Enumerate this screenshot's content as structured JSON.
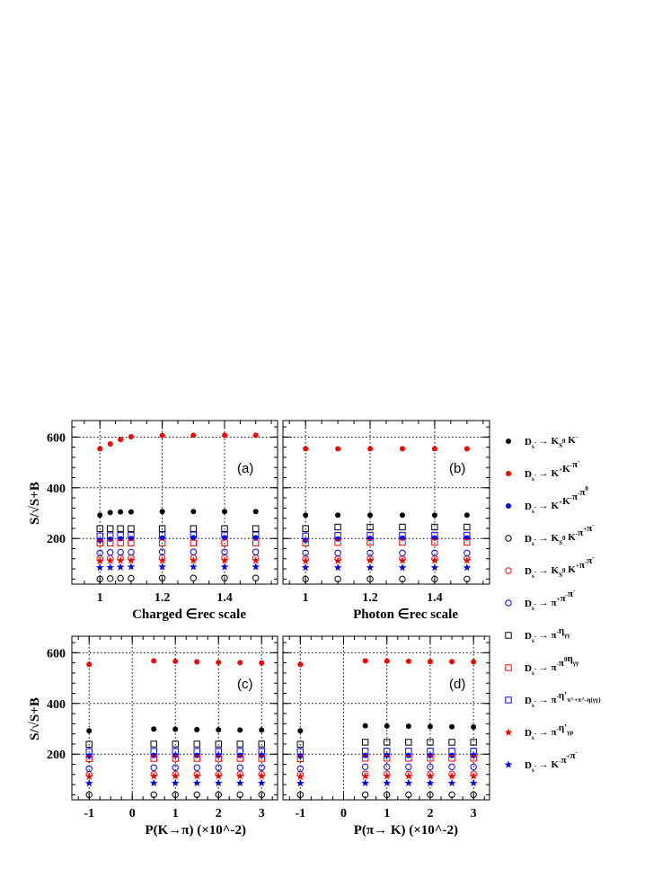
{
  "figure": {
    "ylabel": "S/√S+B",
    "legend": [
      {
        "label": "D_s^- → K_S^0 K^-",
        "marker": "dot",
        "color": "#000000"
      },
      {
        "label": "D_s^- → K^+K^-π^-",
        "marker": "dot",
        "color": "#ff0000"
      },
      {
        "label": "D_s^- → K^+K^-π^-π^0",
        "marker": "dot",
        "color": "#0000ff"
      },
      {
        "label": "D_s^- → K_S^0 K^-π^+π^-",
        "marker": "open-circle",
        "color": "#000000"
      },
      {
        "label": "D_s^- → K_S^0 K^+π^-π^-",
        "marker": "open-circle",
        "color": "#ff0000"
      },
      {
        "label": "D_s^- → π^+π^-π^-",
        "marker": "open-circle",
        "color": "#0000ff"
      },
      {
        "label": "D_s^- → π^-η_{γγ}",
        "marker": "open-square",
        "color": "#000000"
      },
      {
        "label": "D_s^- → π^-π^0η_{γγ}",
        "marker": "open-square",
        "color": "#ff0000"
      },
      {
        "label": "D_s^- → π^-η'_{π^+π^-η(γγ)}",
        "marker": "open-square",
        "color": "#0000ff"
      },
      {
        "label": "D_s^- → π^-η'_{γρ}",
        "marker": "star",
        "color": "#ff0000"
      },
      {
        "label": "D_s^- → K^-π^+π^-",
        "marker": "star",
        "color": "#0000ff"
      }
    ]
  },
  "chart_data": [
    {
      "type": "scatter",
      "panel_label": "(a)",
      "xlabel": "Charged ∈rec scale",
      "ylabel": "S/√S+B",
      "xlim": [
        0.91,
        1.57
      ],
      "ylim": [
        20,
        665
      ],
      "xticks": [
        {
          "v": 1,
          "t": "1"
        },
        {
          "v": 1.2,
          "t": "1.2"
        },
        {
          "v": 1.4,
          "t": "1.4"
        }
      ],
      "yticks": [
        {
          "v": 200,
          "t": "200"
        },
        {
          "v": 400,
          "t": "400"
        },
        {
          "v": 600,
          "t": "600"
        }
      ],
      "x": [
        1.0,
        1.033,
        1.066,
        1.1,
        1.2,
        1.3,
        1.4,
        1.5
      ],
      "series": [
        {
          "name": "D_s^- → K_S^0 K^-",
          "values": [
            292,
            302,
            305,
            305,
            306,
            306,
            306,
            306
          ]
        },
        {
          "name": "D_s^- → K^+K^-π^-",
          "values": [
            554,
            573,
            590,
            601,
            606,
            607,
            607,
            607
          ]
        },
        {
          "name": "D_s^- → K^+K^-π^-π^0",
          "values": [
            193,
            197,
            199,
            200,
            202,
            203,
            203,
            203
          ]
        },
        {
          "name": "D_s^- → K_S^0 K^-π^+π^-",
          "values": [
            40,
            42,
            43,
            43,
            44,
            44,
            44,
            44
          ]
        },
        {
          "name": "D_s^- → K_S^0 K^+π^-π^-",
          "values": [
            120,
            122,
            123,
            124,
            124,
            124,
            124,
            124
          ]
        },
        {
          "name": "D_s^- → π^+π^-π^-",
          "values": [
            143,
            145,
            146,
            146,
            147,
            147,
            147,
            147
          ]
        },
        {
          "name": "D_s^- → π^-η_{γγ}",
          "values": [
            239,
            239,
            239,
            239,
            239,
            239,
            239,
            239
          ]
        },
        {
          "name": "D_s^- → π^-π^0η_{γγ}",
          "values": [
            182,
            182,
            182,
            182,
            182,
            182,
            182,
            182
          ]
        },
        {
          "name": "D_s^- → π^-η'_{π^+π^-η(γγ)}",
          "values": [
            210,
            211,
            212,
            213,
            214,
            214,
            214,
            214
          ]
        },
        {
          "name": "D_s^- → π^-η'_{γρ}",
          "values": [
            111,
            112,
            113,
            113,
            113,
            113,
            113,
            113
          ]
        },
        {
          "name": "D_s^- → K^-π^+π^-",
          "values": [
            85,
            86,
            87,
            88,
            88,
            88,
            88,
            88
          ]
        }
      ]
    },
    {
      "type": "scatter",
      "panel_label": "(b)",
      "xlabel": "Photon ∈rec scale",
      "ylabel": "",
      "xlim": [
        0.93,
        1.57
      ],
      "ylim": [
        20,
        665
      ],
      "xticks": [
        {
          "v": 1,
          "t": "1"
        },
        {
          "v": 1.2,
          "t": "1.2"
        },
        {
          "v": 1.4,
          "t": "1.4"
        }
      ],
      "yticks": [
        {
          "v": 200,
          "t": ""
        },
        {
          "v": 400,
          "t": ""
        },
        {
          "v": 600,
          "t": ""
        }
      ],
      "x": [
        1.0,
        1.1,
        1.2,
        1.3,
        1.4,
        1.5
      ],
      "series": [
        {
          "name": "D_s^- → K_S^0 K^-",
          "values": [
            292,
            292,
            292,
            292,
            292,
            292
          ]
        },
        {
          "name": "D_s^- → K^+K^-π^-",
          "values": [
            554,
            554,
            554,
            554,
            554,
            554
          ]
        },
        {
          "name": "D_s^- → K^+K^-π^-π^0",
          "values": [
            193,
            198,
            200,
            201,
            202,
            202
          ]
        },
        {
          "name": "D_s^- → K_S^0 K^-π^+π^-",
          "values": [
            40,
            40,
            40,
            40,
            40,
            40
          ]
        },
        {
          "name": "D_s^- → K_S^0 K^+π^-π^-",
          "values": [
            120,
            120,
            120,
            120,
            120,
            120
          ]
        },
        {
          "name": "D_s^- → π^+π^-π^-",
          "values": [
            143,
            143,
            143,
            143,
            143,
            143
          ]
        },
        {
          "name": "D_s^- → π^-η_{γγ}",
          "values": [
            239,
            245,
            245,
            245,
            245,
            245
          ]
        },
        {
          "name": "D_s^- → π^-π^0η_{γγ}",
          "values": [
            182,
            184,
            185,
            185,
            185,
            185
          ]
        },
        {
          "name": "D_s^- → π^-η'_{π^+π^-η(γγ)}",
          "values": [
            210,
            212,
            213,
            213,
            213,
            213
          ]
        },
        {
          "name": "D_s^- → π^-η'_{γρ}",
          "values": [
            111,
            112,
            113,
            113,
            113,
            113
          ]
        },
        {
          "name": "D_s^- → K^-π^+π^-",
          "values": [
            85,
            85,
            85,
            85,
            85,
            85
          ]
        }
      ]
    },
    {
      "type": "scatter",
      "panel_label": "(c)",
      "xlabel": "P(K→π) (×10^-2)",
      "ylabel": "S/√S+B",
      "xlim": [
        -1.4,
        3.37
      ],
      "ylim": [
        20,
        665
      ],
      "xticks": [
        {
          "v": -1,
          "t": "-1"
        },
        {
          "v": 0,
          "t": "0"
        },
        {
          "v": 1,
          "t": "1"
        },
        {
          "v": 2,
          "t": "2"
        },
        {
          "v": 3,
          "t": "3"
        }
      ],
      "yticks": [
        {
          "v": 200,
          "t": "200"
        },
        {
          "v": 400,
          "t": "400"
        },
        {
          "v": 600,
          "t": "600"
        }
      ],
      "x": [
        -1.0,
        0.5,
        1.0,
        1.5,
        2.0,
        2.5,
        3.0
      ],
      "series": [
        {
          "name": "D_s^- → K_S^0 K^-",
          "values": [
            292,
            299,
            298,
            297,
            296,
            295,
            295
          ]
        },
        {
          "name": "D_s^- → K^+K^-π^-",
          "values": [
            554,
            568,
            566,
            564,
            562,
            561,
            560
          ]
        },
        {
          "name": "D_s^- → K^+K^-π^-π^0",
          "values": [
            193,
            195,
            195,
            195,
            195,
            195,
            195
          ]
        },
        {
          "name": "D_s^- → K_S^0 K^-π^+π^-",
          "values": [
            40,
            40,
            40,
            40,
            40,
            40,
            40
          ]
        },
        {
          "name": "D_s^- → K_S^0 K^+π^-π^-",
          "values": [
            120,
            121,
            121,
            121,
            121,
            121,
            121
          ]
        },
        {
          "name": "D_s^- → π^+π^-π^-",
          "values": [
            143,
            147,
            147,
            147,
            147,
            147,
            147
          ]
        },
        {
          "name": "D_s^- → π^-η_{γγ}",
          "values": [
            239,
            240,
            240,
            240,
            240,
            240,
            240
          ]
        },
        {
          "name": "D_s^- → π^-π^0η_{γγ}",
          "values": [
            182,
            183,
            183,
            183,
            183,
            183,
            183
          ]
        },
        {
          "name": "D_s^- → π^-η'_{π^+π^-η(γγ)}",
          "values": [
            210,
            211,
            211,
            211,
            211,
            211,
            211
          ]
        },
        {
          "name": "D_s^- → π^-η'_{γρ}",
          "values": [
            111,
            113,
            113,
            113,
            113,
            113,
            113
          ]
        },
        {
          "name": "D_s^- → K^-π^+π^-",
          "values": [
            85,
            86,
            86,
            86,
            86,
            86,
            86
          ]
        }
      ]
    },
    {
      "type": "scatter",
      "panel_label": "(d)",
      "xlabel": "P(π→ K) (×10^-2)",
      "ylabel": "",
      "xlim": [
        -1.4,
        3.37
      ],
      "ylim": [
        20,
        665
      ],
      "xticks": [
        {
          "v": -1,
          "t": "-1"
        },
        {
          "v": 0,
          "t": "0"
        },
        {
          "v": 1,
          "t": "1"
        },
        {
          "v": 2,
          "t": "2"
        },
        {
          "v": 3,
          "t": "3"
        }
      ],
      "yticks": [
        {
          "v": 200,
          "t": ""
        },
        {
          "v": 400,
          "t": ""
        },
        {
          "v": 600,
          "t": ""
        }
      ],
      "x": [
        -1.0,
        0.5,
        1.0,
        1.5,
        2.0,
        2.5,
        3.0
      ],
      "series": [
        {
          "name": "D_s^- → K_S^0 K^-",
          "values": [
            292,
            312,
            311,
            310,
            309,
            308,
            307
          ]
        },
        {
          "name": "D_s^- → K^+K^-π^-",
          "values": [
            554,
            568,
            567,
            566,
            565,
            565,
            564
          ]
        },
        {
          "name": "D_s^- → K^+K^-π^-π^0",
          "values": [
            193,
            195,
            195,
            195,
            195,
            195,
            195
          ]
        },
        {
          "name": "D_s^- → K_S^0 K^-π^+π^-",
          "values": [
            40,
            40,
            40,
            40,
            40,
            40,
            40
          ]
        },
        {
          "name": "D_s^- → K_S^0 K^+π^-π^-",
          "values": [
            120,
            122,
            122,
            122,
            122,
            122,
            122
          ]
        },
        {
          "name": "D_s^- → π^+π^-π^-",
          "values": [
            143,
            150,
            150,
            150,
            150,
            150,
            150
          ]
        },
        {
          "name": "D_s^- → π^-η_{γγ}",
          "values": [
            239,
            247,
            247,
            247,
            247,
            247,
            247
          ]
        },
        {
          "name": "D_s^- → π^-π^0η_{γγ}",
          "values": [
            182,
            184,
            184,
            184,
            184,
            184,
            184
          ]
        },
        {
          "name": "D_s^- → π^-η'_{π^+π^-η(γγ)}",
          "values": [
            210,
            212,
            212,
            212,
            212,
            212,
            212
          ]
        },
        {
          "name": "D_s^- → π^-η'_{γρ}",
          "values": [
            111,
            113,
            113,
            113,
            113,
            113,
            113
          ]
        },
        {
          "name": "D_s^- → K^-π^+π^-",
          "values": [
            85,
            86,
            86,
            86,
            86,
            86,
            86
          ]
        }
      ]
    }
  ]
}
